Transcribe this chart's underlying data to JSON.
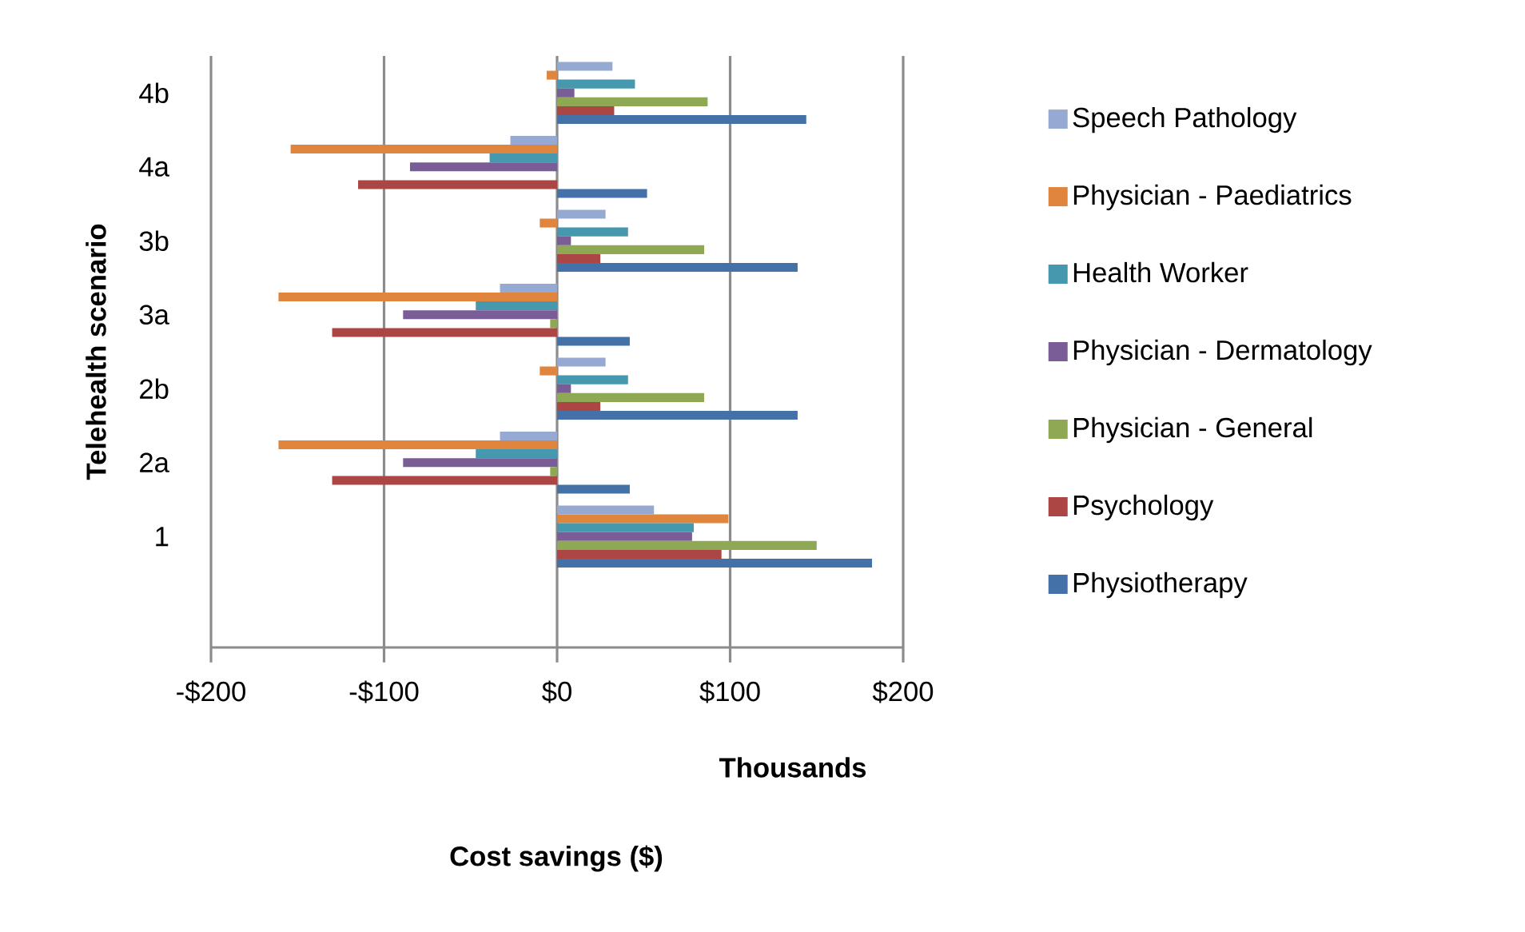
{
  "chart_data": {
    "type": "bar",
    "orientation": "horizontal",
    "ylabel": "Telehealth scenario",
    "annotations": [
      "Thousands",
      "Cost savings ($)"
    ],
    "categories": [
      "4b",
      "4a",
      "3b",
      "3a",
      "2b",
      "2a",
      "1",
      null
    ],
    "series": [
      {
        "name": "Speech Pathology",
        "color": "#95a9d3",
        "values": [
          32,
          -27,
          28,
          -33,
          28,
          -33,
          56,
          null
        ]
      },
      {
        "name": "Physician - Paediatrics",
        "color": "#e0853d",
        "values": [
          -6,
          -154,
          -10,
          -161,
          -10,
          -161,
          99,
          null
        ]
      },
      {
        "name": "Health Worker",
        "color": "#4598ae",
        "values": [
          45,
          -39,
          41,
          -47,
          41,
          -47,
          79,
          null
        ]
      },
      {
        "name": "Physician - Dermatology",
        "color": "#7a5c96",
        "values": [
          10,
          -85,
          8,
          -89,
          8,
          -89,
          78,
          null
        ]
      },
      {
        "name": "Physician - General",
        "color": "#8ea853",
        "values": [
          87,
          0,
          85,
          -4,
          85,
          -4,
          150,
          null
        ]
      },
      {
        "name": "Psychology",
        "color": "#ab4644",
        "values": [
          33,
          -115,
          25,
          -130,
          25,
          -130,
          95,
          null
        ]
      },
      {
        "name": "Physiotherapy",
        "color": "#4472a8",
        "values": [
          144,
          52,
          139,
          42,
          139,
          42,
          182,
          null
        ]
      }
    ],
    "xlim": [
      -200,
      200
    ],
    "xticks": [
      {
        "value": -200,
        "label": "-$200"
      },
      {
        "value": -100,
        "label": "-$100"
      },
      {
        "value": 0,
        "label": "$0"
      },
      {
        "value": 100,
        "label": "$100"
      },
      {
        "value": 200,
        "label": "$200"
      }
    ],
    "grid": "x",
    "legend": "right"
  }
}
